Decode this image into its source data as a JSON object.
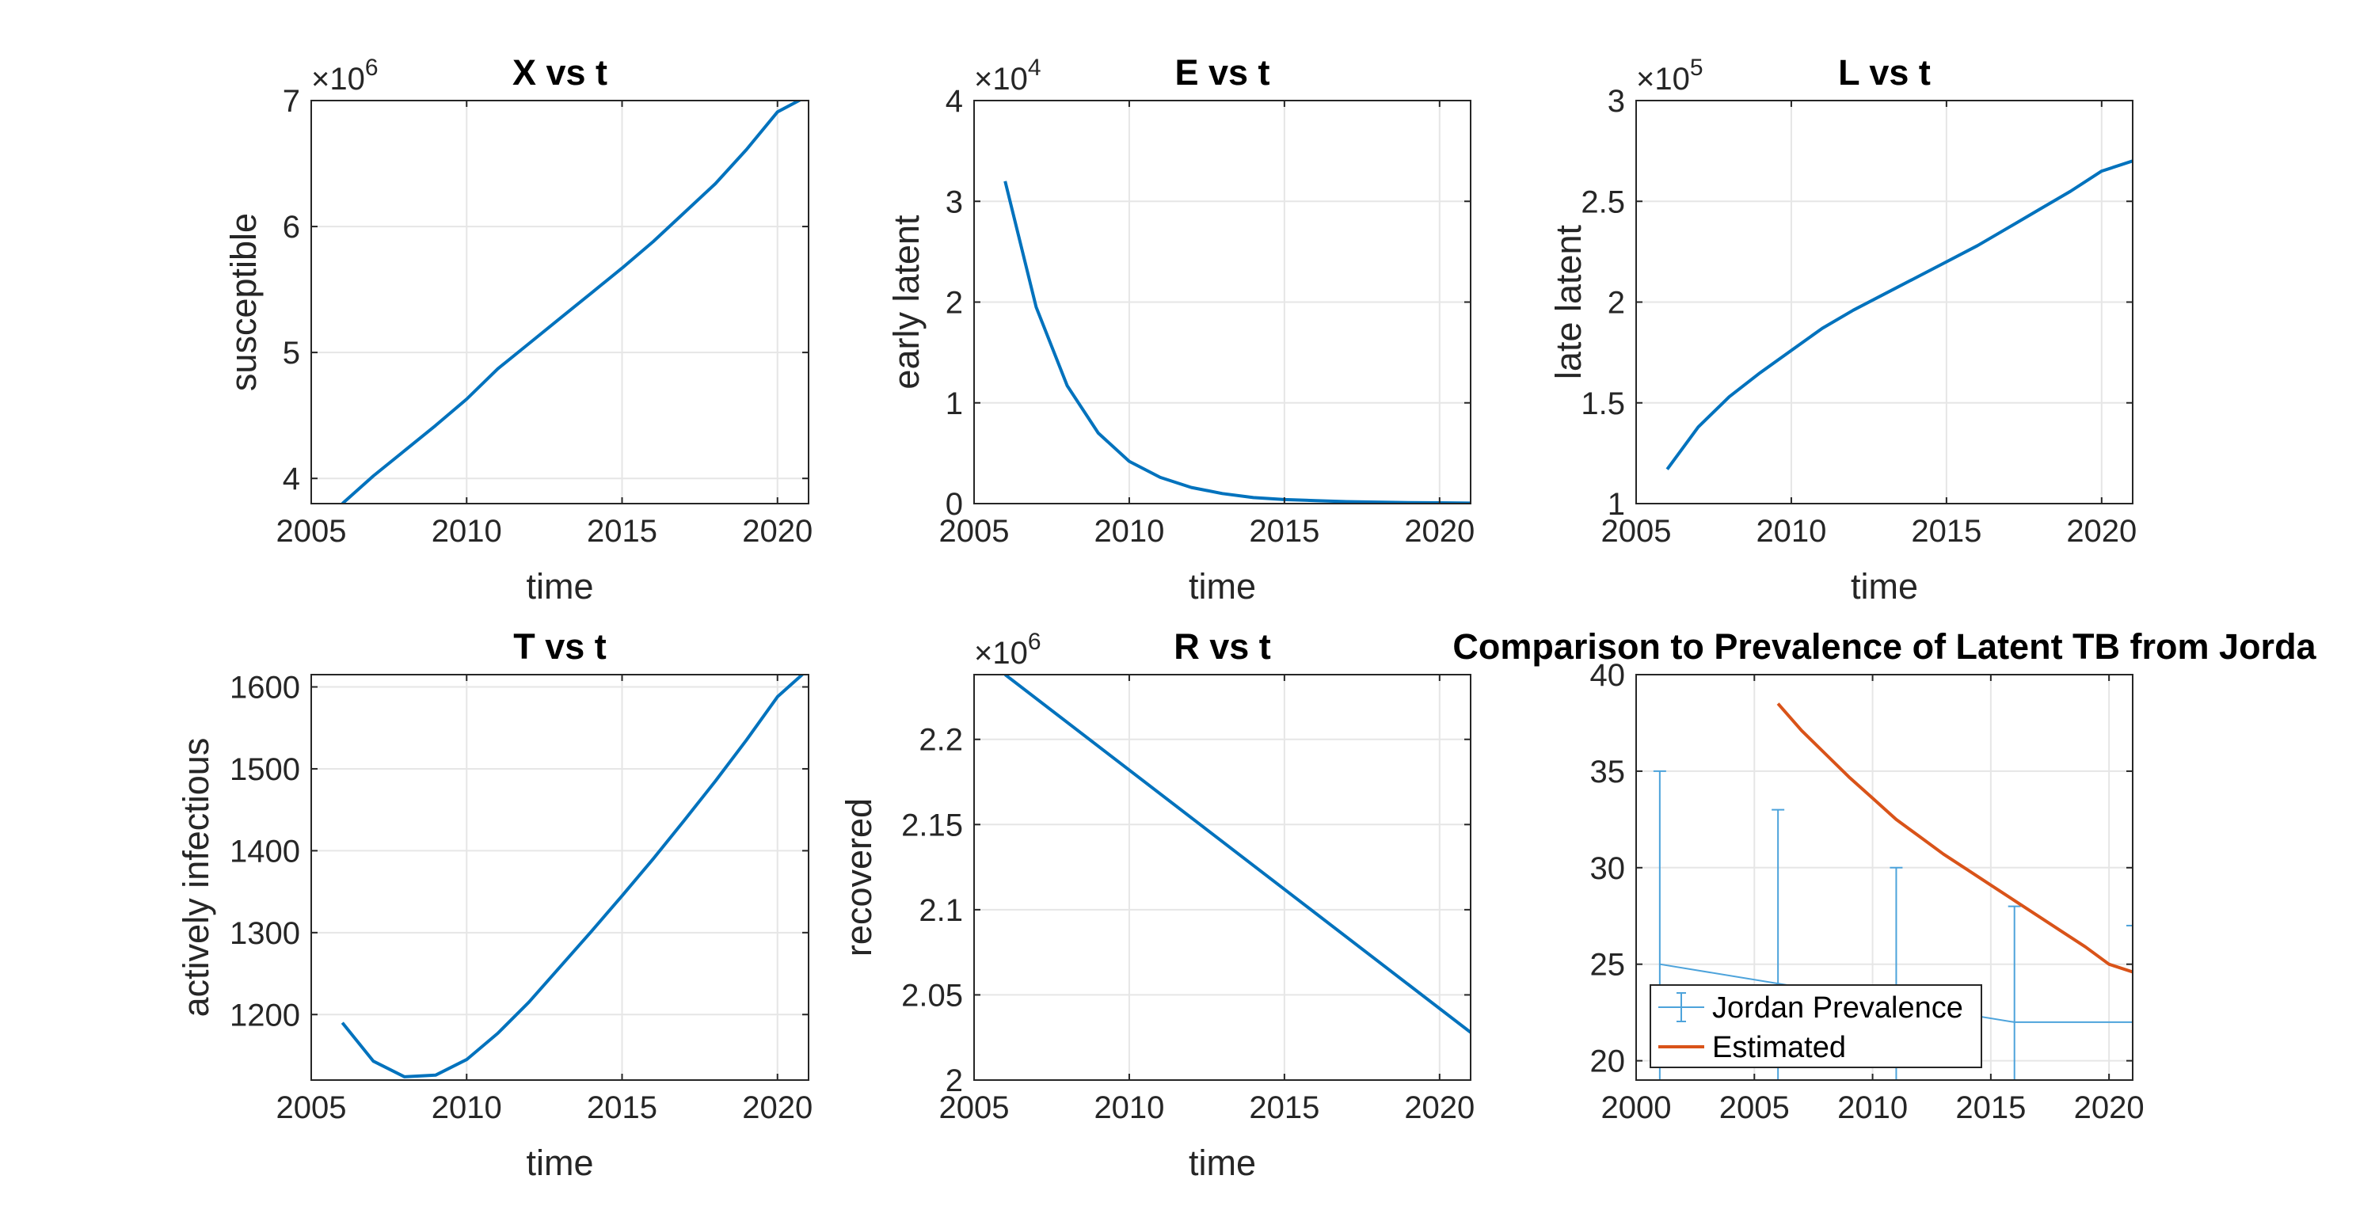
{
  "chart_data": [
    {
      "id": "X",
      "type": "line",
      "title": "X vs t",
      "xlabel": "time",
      "ylabel": "susceptible",
      "exponent_label": "×10",
      "exponent": "6",
      "xlim": [
        2005,
        2021
      ],
      "ylim": [
        3.8,
        7.0
      ],
      "xticks": [
        2005,
        2010,
        2015,
        2020
      ],
      "xtick_labels": [
        "2005",
        "2010",
        "2015",
        "2020"
      ],
      "yticks": [
        4,
        5,
        6,
        7
      ],
      "ytick_labels": [
        "4",
        "5",
        "6",
        "7"
      ],
      "grid": true,
      "series": [
        {
          "color": "#0072BD",
          "x": [
            2006,
            2007,
            2008,
            2009,
            2010,
            2011,
            2012,
            2013,
            2014,
            2015,
            2016,
            2017,
            2018,
            2019,
            2020,
            2021
          ],
          "y": [
            3.8,
            4.02,
            4.22,
            4.42,
            4.63,
            4.87,
            5.07,
            5.27,
            5.47,
            5.67,
            5.88,
            6.11,
            6.34,
            6.61,
            6.91,
            7.04
          ]
        }
      ]
    },
    {
      "id": "E",
      "type": "line",
      "title": "E vs t",
      "xlabel": "time",
      "ylabel": "early latent",
      "exponent_label": "×10",
      "exponent": "4",
      "xlim": [
        2005,
        2021
      ],
      "ylim": [
        0,
        4
      ],
      "xticks": [
        2005,
        2010,
        2015,
        2020
      ],
      "xtick_labels": [
        "2005",
        "2010",
        "2015",
        "2020"
      ],
      "yticks": [
        0,
        1,
        2,
        3,
        4
      ],
      "ytick_labels": [
        "0",
        "1",
        "2",
        "3",
        "4"
      ],
      "grid": true,
      "series": [
        {
          "color": "#0072BD",
          "x": [
            2006,
            2007,
            2008,
            2009,
            2010,
            2011,
            2012,
            2013,
            2014,
            2015,
            2016,
            2017,
            2018,
            2019,
            2020,
            2021
          ],
          "y": [
            3.2,
            1.95,
            1.17,
            0.7,
            0.42,
            0.26,
            0.16,
            0.1,
            0.06,
            0.04,
            0.03,
            0.02,
            0.015,
            0.01,
            0.008,
            0.005
          ]
        }
      ]
    },
    {
      "id": "L",
      "type": "line",
      "title": "L vs t",
      "xlabel": "time",
      "ylabel": "late latent",
      "exponent_label": "×10",
      "exponent": "5",
      "xlim": [
        2005,
        2021
      ],
      "ylim": [
        1,
        3
      ],
      "xticks": [
        2005,
        2010,
        2015,
        2020
      ],
      "xtick_labels": [
        "2005",
        "2010",
        "2015",
        "2020"
      ],
      "yticks": [
        1,
        1.5,
        2,
        2.5,
        3
      ],
      "ytick_labels": [
        "1",
        "1.5",
        "2",
        "2.5",
        "3"
      ],
      "grid": true,
      "series": [
        {
          "color": "#0072BD",
          "x": [
            2006,
            2007,
            2008,
            2009,
            2010,
            2011,
            2012,
            2013,
            2014,
            2015,
            2016,
            2017,
            2018,
            2019,
            2020,
            2021
          ],
          "y": [
            1.17,
            1.38,
            1.53,
            1.65,
            1.76,
            1.87,
            1.96,
            2.04,
            2.12,
            2.2,
            2.28,
            2.37,
            2.46,
            2.55,
            2.65,
            2.7
          ]
        }
      ]
    },
    {
      "id": "T",
      "type": "line",
      "title": "T vs t",
      "xlabel": "time",
      "ylabel": "actively infectious",
      "exponent_label": "",
      "exponent": "",
      "xlim": [
        2005,
        2021
      ],
      "ylim": [
        1120,
        1615
      ],
      "xticks": [
        2005,
        2010,
        2015,
        2020
      ],
      "xtick_labels": [
        "2005",
        "2010",
        "2015",
        "2020"
      ],
      "yticks": [
        1200,
        1300,
        1400,
        1500,
        1600
      ],
      "ytick_labels": [
        "1200",
        "1300",
        "1400",
        "1500",
        "1600"
      ],
      "grid": true,
      "series": [
        {
          "color": "#0072BD",
          "x": [
            2006,
            2007,
            2008,
            2009,
            2010,
            2011,
            2012,
            2013,
            2014,
            2015,
            2016,
            2017,
            2018,
            2019,
            2020,
            2021
          ],
          "y": [
            1190,
            1143,
            1124,
            1126,
            1145,
            1177,
            1215,
            1258,
            1301,
            1345,
            1390,
            1437,
            1485,
            1535,
            1588,
            1622
          ]
        }
      ]
    },
    {
      "id": "R",
      "type": "line",
      "title": "R vs t",
      "xlabel": "time",
      "ylabel": "recovered",
      "exponent_label": "×10",
      "exponent": "6",
      "xlim": [
        2005,
        2021
      ],
      "ylim": [
        2.0,
        2.238
      ],
      "xticks": [
        2005,
        2010,
        2015,
        2020
      ],
      "xtick_labels": [
        "2005",
        "2010",
        "2015",
        "2020"
      ],
      "yticks": [
        2.0,
        2.05,
        2.1,
        2.15,
        2.2
      ],
      "ytick_labels": [
        "2",
        "2.05",
        "2.1",
        "2.15",
        "2.2"
      ],
      "grid": true,
      "series": [
        {
          "color": "#0072BD",
          "x": [
            2006,
            2021
          ],
          "y": [
            2.238,
            2.028
          ]
        }
      ]
    },
    {
      "id": "Comp",
      "type": "line",
      "title": "Comparison to Prevalence of Latent TB from Jorda",
      "xlabel": "",
      "ylabel": "",
      "exponent_label": "",
      "exponent": "",
      "xlim": [
        2000,
        2021
      ],
      "ylim": [
        19,
        40
      ],
      "xticks": [
        2000,
        2005,
        2010,
        2015,
        2020
      ],
      "xtick_labels": [
        "2000",
        "2005",
        "2010",
        "2015",
        "2020"
      ],
      "yticks": [
        20,
        25,
        30,
        35,
        40
      ],
      "ytick_labels": [
        "20",
        "25",
        "30",
        "35",
        "40"
      ],
      "grid": true,
      "legend_position": "bottom-left",
      "series": [
        {
          "name": "Jordan Prevalence",
          "color": "#4DA3DB",
          "errorbar": true,
          "x": [
            2001,
            2006,
            2011,
            2016,
            2021
          ],
          "y": [
            25,
            24,
            23,
            22,
            22
          ],
          "lower": [
            6,
            5,
            4,
            3,
            3
          ],
          "upper": [
            10,
            9,
            7,
            6,
            5
          ]
        },
        {
          "name": "Estimated",
          "color": "#D95319",
          "errorbar": false,
          "x": [
            2006,
            2007,
            2008,
            2009,
            2010,
            2011,
            2012,
            2013,
            2014,
            2015,
            2016,
            2017,
            2018,
            2019,
            2020,
            2021
          ],
          "y": [
            38.5,
            37.1,
            35.9,
            34.7,
            33.6,
            32.5,
            31.6,
            30.7,
            29.9,
            29.1,
            28.3,
            27.5,
            26.7,
            25.9,
            25.0,
            24.6
          ]
        }
      ]
    }
  ]
}
